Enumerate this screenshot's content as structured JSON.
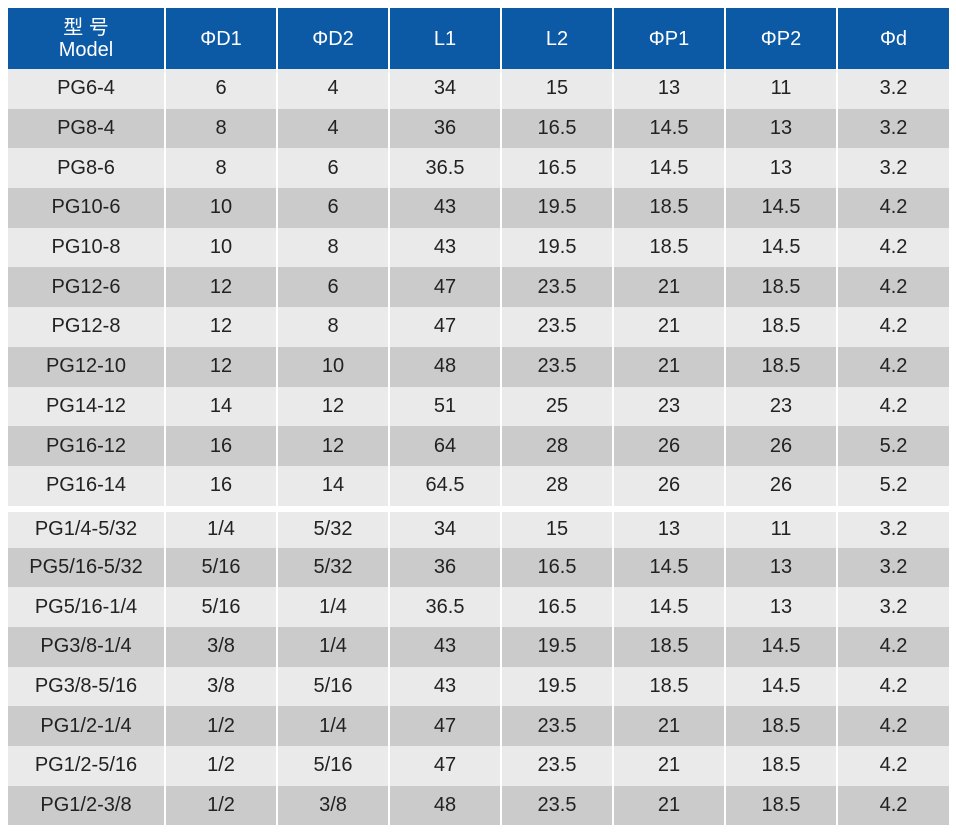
{
  "header": {
    "model_cn": "型 号",
    "model_en": "Model",
    "columns": [
      "ΦD1",
      "ΦD2",
      "L1",
      "L2",
      "ΦP1",
      "ΦP2",
      "Φd"
    ]
  },
  "rows": [
    [
      "PG6-4",
      "6",
      "4",
      "34",
      "15",
      "13",
      "11",
      "3.2"
    ],
    [
      "PG8-4",
      "8",
      "4",
      "36",
      "16.5",
      "14.5",
      "13",
      "3.2"
    ],
    [
      "PG8-6",
      "8",
      "6",
      "36.5",
      "16.5",
      "14.5",
      "13",
      "3.2"
    ],
    [
      "PG10-6",
      "10",
      "6",
      "43",
      "19.5",
      "18.5",
      "14.5",
      "4.2"
    ],
    [
      "PG10-8",
      "10",
      "8",
      "43",
      "19.5",
      "18.5",
      "14.5",
      "4.2"
    ],
    [
      "PG12-6",
      "12",
      "6",
      "47",
      "23.5",
      "21",
      "18.5",
      "4.2"
    ],
    [
      "PG12-8",
      "12",
      "8",
      "47",
      "23.5",
      "21",
      "18.5",
      "4.2"
    ],
    [
      "PG12-10",
      "12",
      "10",
      "48",
      "23.5",
      "21",
      "18.5",
      "4.2"
    ],
    [
      "PG14-12",
      "14",
      "12",
      "51",
      "25",
      "23",
      "23",
      "4.2"
    ],
    [
      "PG16-12",
      "16",
      "12",
      "64",
      "28",
      "26",
      "26",
      "5.2"
    ],
    [
      "PG16-14",
      "16",
      "14",
      "64.5",
      "28",
      "26",
      "26",
      "5.2"
    ],
    [
      "PG1/4-5/32",
      "1/4",
      "5/32",
      "34",
      "15",
      "13",
      "11",
      "3.2"
    ],
    [
      "PG5/16-5/32",
      "5/16",
      "5/32",
      "36",
      "16.5",
      "14.5",
      "13",
      "3.2"
    ],
    [
      "PG5/16-1/4",
      "5/16",
      "1/4",
      "36.5",
      "16.5",
      "14.5",
      "13",
      "3.2"
    ],
    [
      "PG3/8-1/4",
      "3/8",
      "1/4",
      "43",
      "19.5",
      "18.5",
      "14.5",
      "4.2"
    ],
    [
      "PG3/8-5/16",
      "3/8",
      "5/16",
      "43",
      "19.5",
      "18.5",
      "14.5",
      "4.2"
    ],
    [
      "PG1/2-1/4",
      "1/2",
      "1/4",
      "47",
      "23.5",
      "21",
      "18.5",
      "4.2"
    ],
    [
      "PG1/2-5/16",
      "1/2",
      "5/16",
      "47",
      "23.5",
      "21",
      "18.5",
      "4.2"
    ],
    [
      "PG1/2-3/8",
      "1/2",
      "3/8",
      "48",
      "23.5",
      "21",
      "18.5",
      "4.2"
    ]
  ],
  "colors": {
    "header_bg": "#0c5aa6",
    "row_light": "#eaeaea",
    "row_dark": "#cbcbcb"
  }
}
